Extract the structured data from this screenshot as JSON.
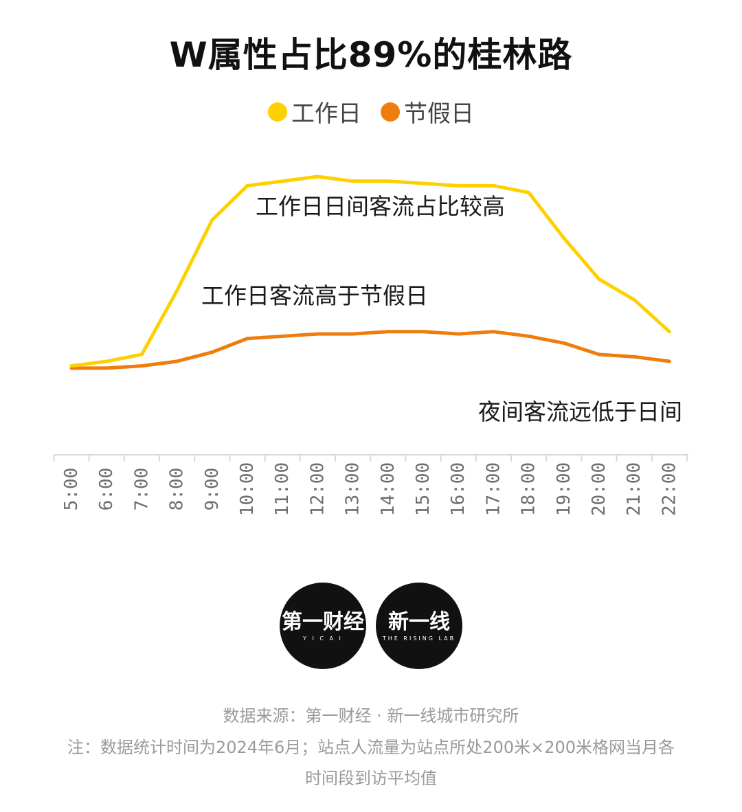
{
  "title": "W属性占比89%的桂林路",
  "colors": {
    "workday": "#FFD000",
    "holiday": "#EE7D0E",
    "axis": "#d9d9d9",
    "tick_text": "#6e6e6e"
  },
  "chart_data": {
    "type": "line",
    "title": "W属性占比89%的桂林路",
    "xlabel": "",
    "ylabel": "",
    "grid": false,
    "legend_position": "top-center",
    "x": [
      "5:00",
      "6:00",
      "7:00",
      "8:00",
      "9:00",
      "10:00",
      "11:00",
      "12:00",
      "13:00",
      "14:00",
      "15:00",
      "16:00",
      "17:00",
      "18:00",
      "19:00",
      "20:00",
      "21:00",
      "22:00"
    ],
    "ylim": [
      0,
      100
    ],
    "series": [
      {
        "name": "工作日",
        "color": "#FFD000",
        "values": [
          20,
          22,
          25,
          53,
          84,
          99,
          101,
          103,
          101,
          101,
          100,
          99,
          99,
          96,
          76,
          58,
          49,
          35
        ]
      },
      {
        "name": "节假日",
        "color": "#EE7D0E",
        "values": [
          19,
          19,
          20,
          22,
          26,
          32,
          33,
          34,
          34,
          35,
          35,
          34,
          35,
          33,
          30,
          25,
          24,
          22
        ]
      }
    ],
    "annotations": [
      {
        "text": "工作日日间客流占比较高"
      },
      {
        "text": "工作日客流高于节假日"
      },
      {
        "text": "夜间客流远低于日间"
      }
    ]
  },
  "logos": {
    "yicai_main": "第一财经",
    "yicai_sub": "Y I C A I",
    "rising_main": "新一线",
    "rising_sub": "THE RISING LAB"
  },
  "footer": {
    "source": "数据来源：第一财经 · 新一线城市研究所",
    "note_line1": "注：数据统计时间为2024年6月；站点人流量为站点所处200米×200米格网当月各",
    "note_line2": "时间段到访平均值"
  }
}
